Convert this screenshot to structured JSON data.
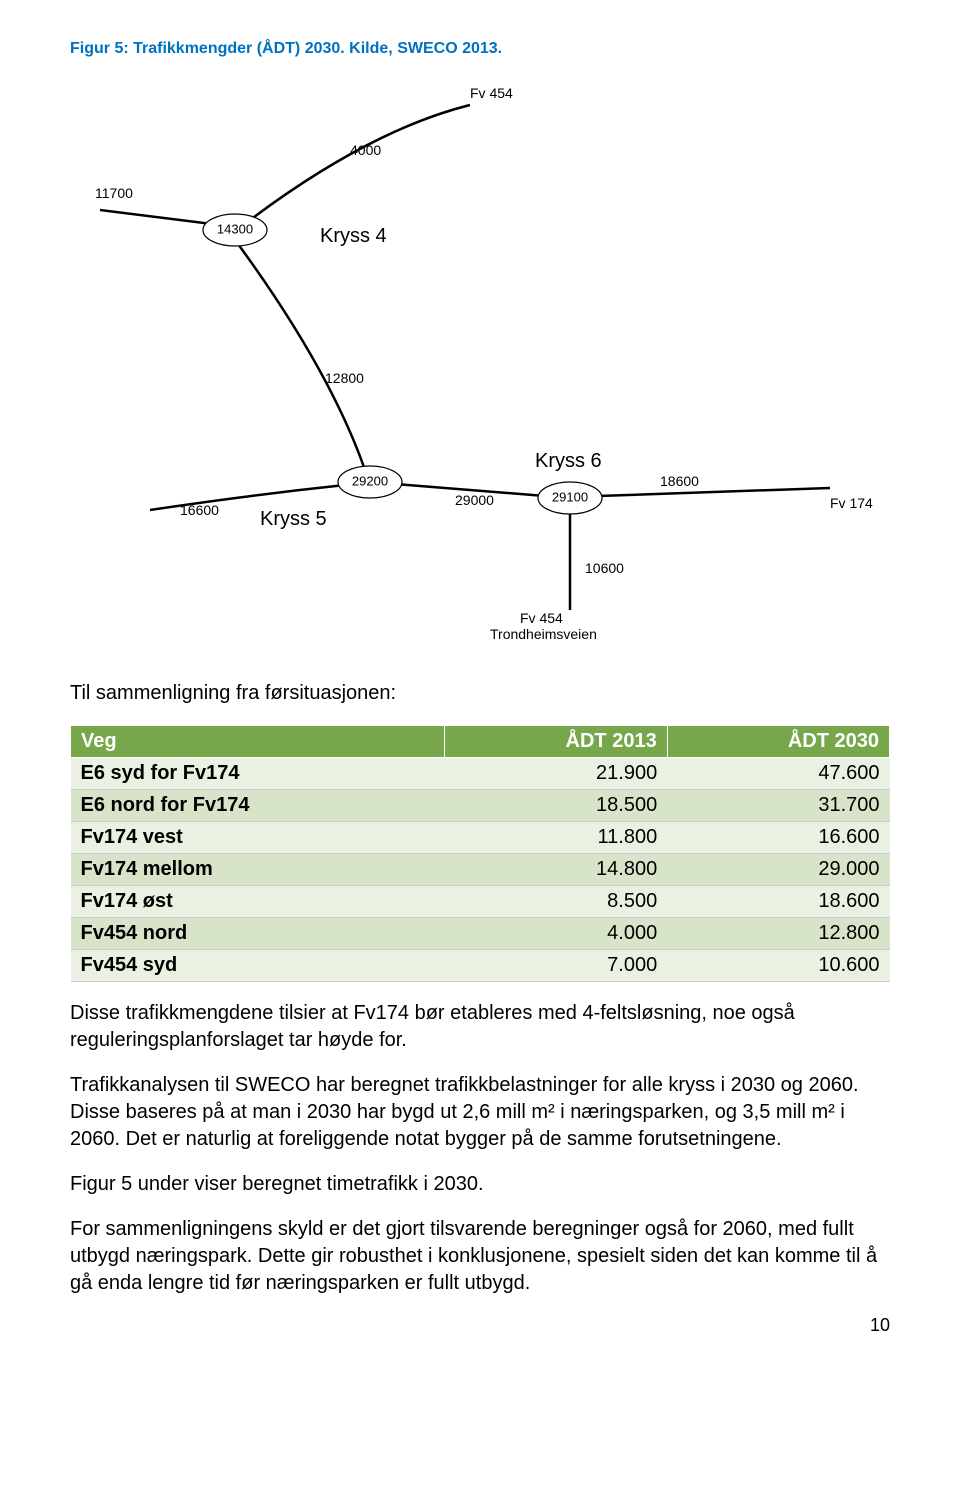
{
  "caption_prefix": "Figur 5: Trafikkmengder (ÅDT) 2030. Kilde, SWECO 2013.",
  "caption_color": "#0070c0",
  "diagram": {
    "stroke": "#000000",
    "node_fill": "#ffffff",
    "labels": {
      "fv454_top": "Fv 454",
      "v_11700": "11700",
      "v_4000": "4000",
      "v_12800": "12800",
      "v_16600": "16600",
      "v_29000": "29000",
      "v_18600": "18600",
      "fv174_right": "Fv 174",
      "v_10600": "10600",
      "fv454_bot": "Fv 454",
      "trond": "Trondheimsveien"
    },
    "nodes": {
      "n1": "14300",
      "n2": "29200",
      "n3": "29100"
    },
    "kryss": {
      "k4": "Kryss 4",
      "k5": "Kryss 5",
      "k6": "Kryss 6"
    }
  },
  "intro_line": "Til sammenligning fra førsituasjonen:",
  "table": {
    "header_bg": "#77a74a",
    "row_even_bg": "#eaf1e3",
    "row_odd_bg": "#d7e4c9",
    "columns": [
      "Veg",
      "ÅDT 2013",
      "ÅDT 2030"
    ],
    "rows": [
      [
        "E6 syd for Fv174",
        "21.900",
        "47.600"
      ],
      [
        "E6 nord for Fv174",
        "18.500",
        "31.700"
      ],
      [
        "Fv174 vest",
        "11.800",
        "16.600"
      ],
      [
        "Fv174 mellom",
        "14.800",
        "29.000"
      ],
      [
        "Fv174 øst",
        "8.500",
        "18.600"
      ],
      [
        "Fv454 nord",
        "4.000",
        "12.800"
      ],
      [
        "Fv454 syd",
        "7.000",
        "10.600"
      ]
    ]
  },
  "para1": "Disse trafikkmengdene tilsier at Fv174 bør etableres med 4-feltsløsning, noe også reguleringsplanforslaget tar høyde for.",
  "para2": "Trafikkanalysen til SWECO har beregnet trafikkbelastninger for alle kryss i 2030 og 2060. Disse baseres på at man i 2030 har bygd ut 2,6 mill m² i næringsparken, og 3,5 mill m² i 2060. Det er naturlig at foreliggende notat bygger på de samme forutsetningene.",
  "para3": "Figur 5 under viser beregnet timetrafikk i 2030.",
  "para4": "For sammenligningens skyld er det gjort tilsvarende beregninger også for 2060, med fullt utbygd næringspark. Dette gir robusthet i konklusjonene, spesielt siden det kan komme til å gå enda lengre tid før næringsparken er fullt utbygd.",
  "page_number": "10"
}
